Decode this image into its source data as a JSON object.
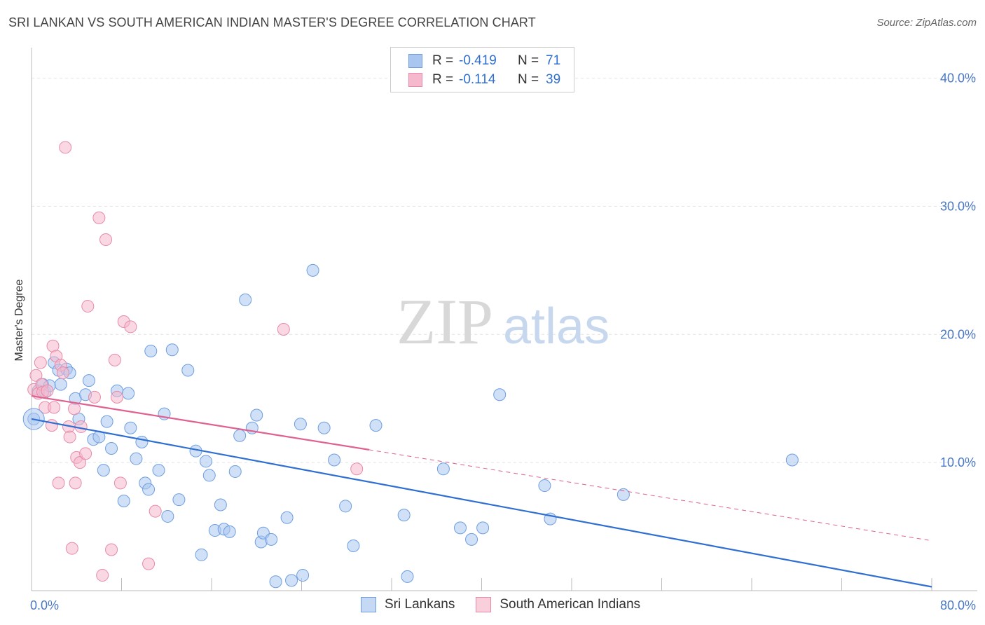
{
  "title": "SRI LANKAN VS SOUTH AMERICAN INDIAN MASTER'S DEGREE CORRELATION CHART",
  "source": "Source: ZipAtlas.com",
  "watermark": {
    "zip": "ZIP",
    "atlas": "atlas"
  },
  "legend": {
    "rows": [
      {
        "r_label": "R =",
        "r_value": "-0.419",
        "n_label": "N =",
        "n_value": "71",
        "color": "#a9c6f1",
        "border": "#6e9ee0"
      },
      {
        "r_label": "R =",
        "r_value": "-0.114",
        "n_label": "N =",
        "n_value": "39",
        "color": "#f6b8cc",
        "border": "#e88aa8"
      }
    ]
  },
  "bottom_legend": [
    "Sri Lankans",
    "South American Indians"
  ],
  "chart_data": {
    "type": "scatter",
    "xlabel": "",
    "ylabel": "Master's Degree",
    "xlim": [
      0,
      80
    ],
    "ylim": [
      0,
      42
    ],
    "x_tick_labels": [
      {
        "value": 0,
        "label": "0.0%"
      },
      {
        "value": 80,
        "label": "80.0%"
      }
    ],
    "y_tick_labels": [
      {
        "value": 10,
        "label": "10.0%"
      },
      {
        "value": 20,
        "label": "20.0%"
      },
      {
        "value": 30,
        "label": "30.0%"
      },
      {
        "value": 40,
        "label": "40.0%"
      }
    ],
    "grid": true,
    "series": [
      {
        "name": "Sri Lankans",
        "color": "#a9c6f1",
        "stroke": "#6e9ee0",
        "line_color": "#2f6fd1",
        "trend": {
          "x0": 0,
          "y0": 13.4,
          "x1": 80,
          "y1": 0.3
        },
        "points": [
          [
            0.2,
            13.4
          ],
          [
            0.6,
            15.6
          ],
          [
            1.0,
            16.1
          ],
          [
            1.2,
            15.5
          ],
          [
            1.6,
            16.0
          ],
          [
            2.0,
            17.8
          ],
          [
            2.4,
            17.2
          ],
          [
            2.6,
            16.1
          ],
          [
            3.1,
            17.3
          ],
          [
            3.4,
            17.0
          ],
          [
            3.9,
            15.0
          ],
          [
            4.2,
            13.4
          ],
          [
            4.8,
            15.3
          ],
          [
            5.1,
            16.4
          ],
          [
            5.5,
            11.8
          ],
          [
            6.0,
            12.0
          ],
          [
            6.4,
            9.4
          ],
          [
            6.7,
            13.2
          ],
          [
            7.1,
            11.1
          ],
          [
            7.6,
            15.6
          ],
          [
            8.2,
            7.0
          ],
          [
            8.6,
            15.4
          ],
          [
            8.8,
            12.7
          ],
          [
            9.3,
            10.3
          ],
          [
            9.8,
            11.6
          ],
          [
            10.1,
            8.4
          ],
          [
            10.4,
            7.9
          ],
          [
            10.6,
            18.7
          ],
          [
            11.3,
            9.4
          ],
          [
            11.8,
            13.8
          ],
          [
            12.1,
            5.8
          ],
          [
            12.5,
            18.8
          ],
          [
            13.1,
            7.1
          ],
          [
            13.9,
            17.2
          ],
          [
            14.6,
            10.9
          ],
          [
            15.1,
            2.8
          ],
          [
            15.5,
            10.1
          ],
          [
            15.8,
            9.0
          ],
          [
            16.3,
            4.7
          ],
          [
            16.8,
            6.7
          ],
          [
            17.1,
            4.8
          ],
          [
            17.6,
            4.6
          ],
          [
            18.1,
            9.3
          ],
          [
            18.5,
            12.1
          ],
          [
            19.0,
            22.7
          ],
          [
            19.6,
            12.7
          ],
          [
            20.0,
            13.7
          ],
          [
            20.4,
            3.8
          ],
          [
            20.6,
            4.5
          ],
          [
            21.3,
            4.0
          ],
          [
            21.7,
            0.7
          ],
          [
            22.7,
            5.7
          ],
          [
            23.1,
            0.8
          ],
          [
            23.9,
            13.0
          ],
          [
            24.1,
            1.2
          ],
          [
            25.0,
            25.0
          ],
          [
            26.0,
            12.7
          ],
          [
            26.9,
            10.2
          ],
          [
            27.9,
            6.6
          ],
          [
            28.6,
            3.5
          ],
          [
            30.6,
            12.9
          ],
          [
            33.1,
            5.9
          ],
          [
            33.4,
            1.1
          ],
          [
            36.6,
            9.5
          ],
          [
            38.1,
            4.9
          ],
          [
            39.1,
            4.0
          ],
          [
            40.1,
            4.9
          ],
          [
            41.6,
            15.3
          ],
          [
            45.6,
            8.2
          ],
          [
            46.1,
            5.6
          ],
          [
            52.6,
            7.5
          ],
          [
            67.6,
            10.2
          ]
        ]
      },
      {
        "name": "South American Indians",
        "color": "#f6b8cc",
        "stroke": "#e88aa8",
        "line_color": "#e0608f",
        "trend": {
          "x0": 0,
          "y0": 15.2,
          "x1": 30,
          "y1": 11.0
        },
        "trend_dashed": {
          "x0": 30,
          "y0": 11.0,
          "x1": 80,
          "y1": 3.9
        },
        "points": [
          [
            0.2,
            15.7
          ],
          [
            0.4,
            16.8
          ],
          [
            0.6,
            15.4
          ],
          [
            0.8,
            17.8
          ],
          [
            0.9,
            16.1
          ],
          [
            1.0,
            15.5
          ],
          [
            1.2,
            14.3
          ],
          [
            1.4,
            15.6
          ],
          [
            1.8,
            12.9
          ],
          [
            1.9,
            19.1
          ],
          [
            2.0,
            14.3
          ],
          [
            2.2,
            18.3
          ],
          [
            2.4,
            8.4
          ],
          [
            2.6,
            17.6
          ],
          [
            2.8,
            17.0
          ],
          [
            3.0,
            34.6
          ],
          [
            3.3,
            12.8
          ],
          [
            3.4,
            12.0
          ],
          [
            3.6,
            3.3
          ],
          [
            3.8,
            14.2
          ],
          [
            3.9,
            8.4
          ],
          [
            4.0,
            10.4
          ],
          [
            4.3,
            10.0
          ],
          [
            4.4,
            12.8
          ],
          [
            4.8,
            10.7
          ],
          [
            5.0,
            22.2
          ],
          [
            5.6,
            15.1
          ],
          [
            6.0,
            29.1
          ],
          [
            6.3,
            1.2
          ],
          [
            6.6,
            27.4
          ],
          [
            7.1,
            3.2
          ],
          [
            7.4,
            18.0
          ],
          [
            7.6,
            15.1
          ],
          [
            7.9,
            8.4
          ],
          [
            8.2,
            21.0
          ],
          [
            8.8,
            20.6
          ],
          [
            10.4,
            2.1
          ],
          [
            11.0,
            6.2
          ],
          [
            22.4,
            20.4
          ],
          [
            28.9,
            9.5
          ]
        ]
      }
    ]
  }
}
